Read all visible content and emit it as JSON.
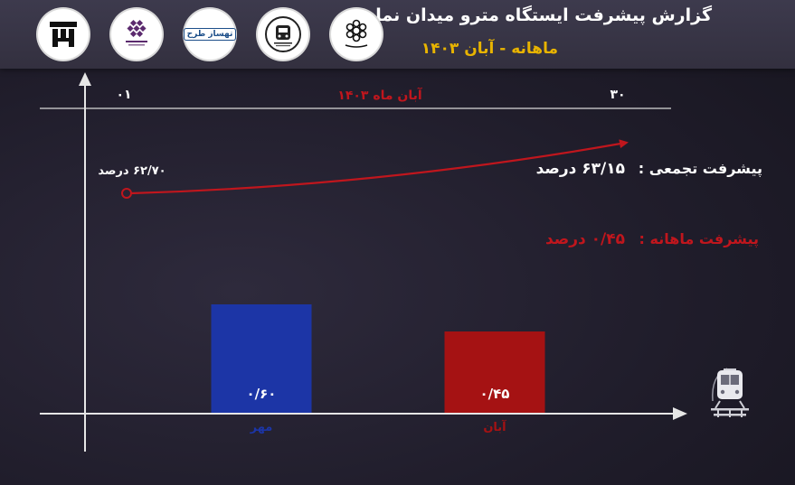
{
  "header": {
    "title": "گزارش پیشرفت ایستگاه مترو میدان نماز",
    "subtitle": "ماهانه - آبان ۱۴۰۳",
    "logos": [
      {
        "name": "company-logo-icon"
      },
      {
        "name": "consultant-logo-icon"
      },
      {
        "name": "tehsazteh-logo-icon",
        "text": "تهساز طرح"
      },
      {
        "name": "metro-organization-logo-icon"
      },
      {
        "name": "islamshahr-municipality-logo-icon"
      }
    ]
  },
  "timeline": {
    "start_label": "۰۱",
    "end_label": "۳۰",
    "period_label": "آبان ماه ۱۴۰۳",
    "start_value_label": "۶۲/۷۰ درصد"
  },
  "progress": {
    "cumulative_label": "پیشرفت تجمعی :",
    "cumulative_value": "۶۳/۱۵ درصد",
    "monthly_label": "پیشرفت ماهانه :",
    "monthly_value": "۰/۴۵ درصد"
  },
  "colors": {
    "accent_red": "#c0161d",
    "bar_blue": "#1c35a6",
    "bar_red": "#a51213",
    "title_yellow": "#e8b400"
  },
  "chart_data": {
    "type": "bar",
    "categories": [
      "مهر",
      "آبان"
    ],
    "values": [
      0.6,
      0.45
    ],
    "value_labels": [
      "۰/۶۰",
      "۰/۴۵"
    ],
    "colors": [
      "#1c35a6",
      "#a51213"
    ],
    "ylim": [
      0,
      0.8
    ],
    "grid": false,
    "trend_line": {
      "start_value": 62.7,
      "end_value": 63.15,
      "start_day": 1,
      "end_day": 30
    }
  }
}
